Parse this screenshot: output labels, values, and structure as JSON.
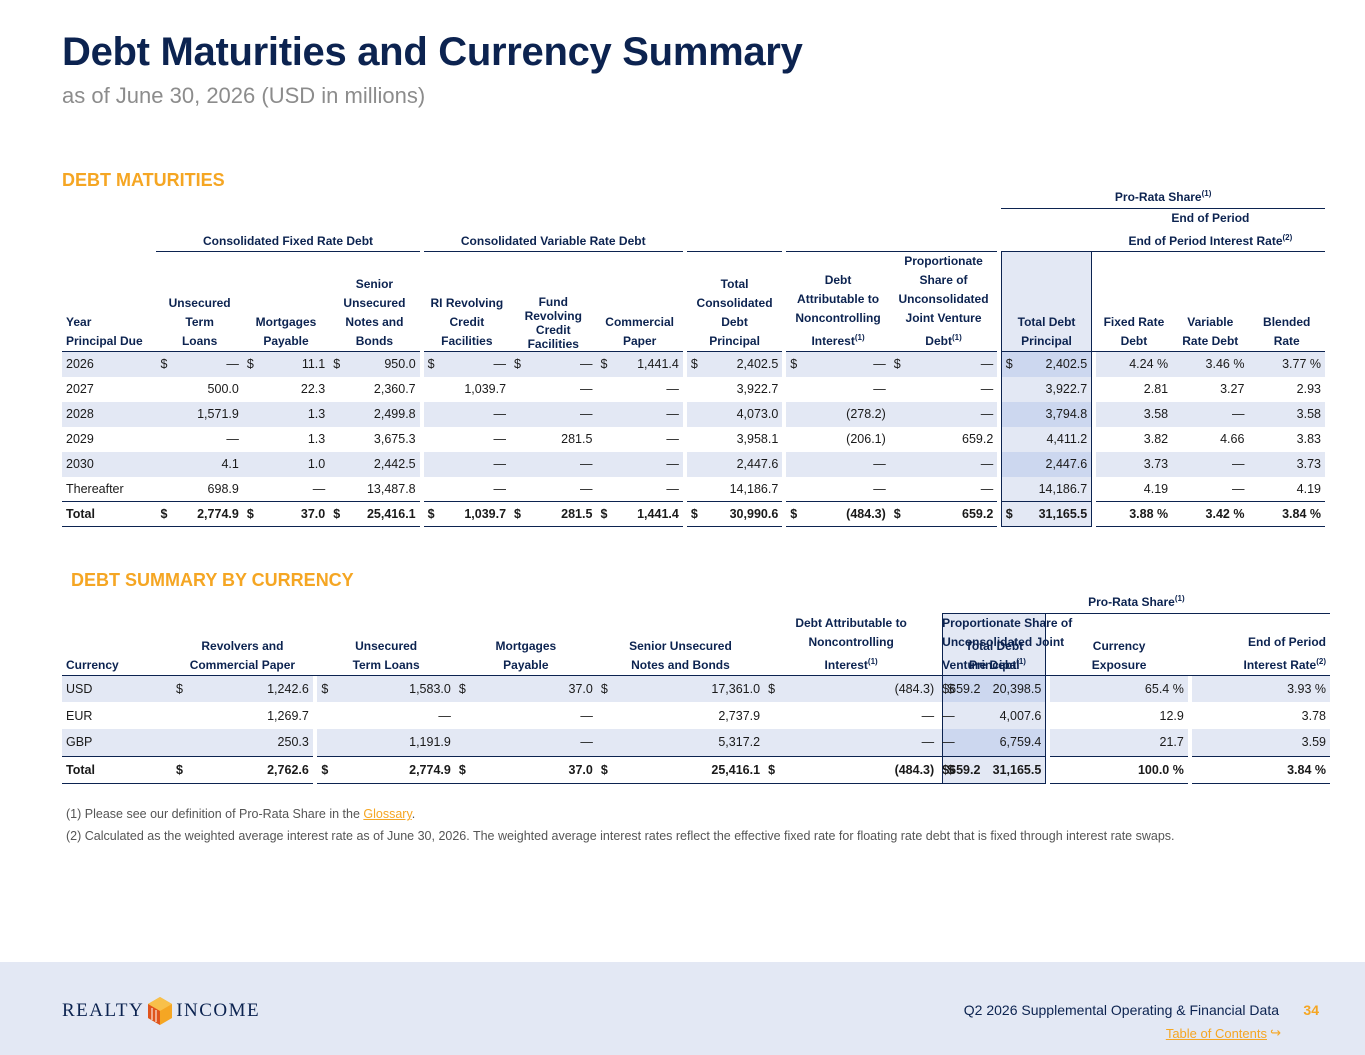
{
  "title": "Debt Maturities and Currency Summary",
  "subtitle": "as of June 30, 2026 (USD in millions)",
  "maturities": {
    "heading": "DEBT MATURITIES",
    "pro_rata_label": "Pro-Rata Share",
    "group_fixed": "Consolidated Fixed Rate Debt",
    "group_variable": "Consolidated Variable Rate Debt",
    "group_rate": "End of Period Interest Rate",
    "columns": {
      "year": [
        "Year",
        "Principal Due"
      ],
      "term_loans": [
        "Unsecured",
        "Term",
        "Loans"
      ],
      "mortgages": [
        "Mortgages",
        "Payable"
      ],
      "notes": [
        "Senior",
        "Unsecured",
        "Notes and",
        "Bonds"
      ],
      "ri_revolver": [
        "RI Revolving",
        "Credit",
        "Facilities"
      ],
      "fund_revolver": [
        "Fund",
        "Revolving",
        "Credit",
        "Facilities"
      ],
      "cp": [
        "Commercial",
        "Paper"
      ],
      "total_cons": [
        "Total",
        "Consolidated",
        "Debt",
        "Principal"
      ],
      "nci": [
        "Debt",
        "Attributable to",
        "Noncontrolling",
        "Interest"
      ],
      "jv": [
        "Proportionate",
        "Share of",
        "Unconsolidated",
        "Joint Venture",
        "Debt"
      ],
      "total": [
        "Total Debt",
        "Principal"
      ],
      "fixed": [
        "Fixed Rate",
        "Debt"
      ],
      "variable": [
        "Variable",
        "Rate Debt"
      ],
      "blended": [
        "Blended",
        "Rate"
      ]
    },
    "rows": [
      {
        "year": "2026",
        "term_loans": "—",
        "mortgages": "11.1",
        "notes": "950.0",
        "ri_revolver": "—",
        "fund_revolver": "—",
        "cp": "1,441.4",
        "total_cons": "2,402.5",
        "nci": "—",
        "jv": "—",
        "total": "2,402.5",
        "fixed": "4.24 %",
        "variable": "3.46 %",
        "blended": "3.77 %"
      },
      {
        "year": "2027",
        "term_loans": "500.0",
        "mortgages": "22.3",
        "notes": "2,360.7",
        "ri_revolver": "1,039.7",
        "fund_revolver": "—",
        "cp": "—",
        "total_cons": "3,922.7",
        "nci": "—",
        "jv": "—",
        "total": "3,922.7",
        "fixed": "2.81",
        "variable": "3.27",
        "blended": "2.93"
      },
      {
        "year": "2028",
        "term_loans": "1,571.9",
        "mortgages": "1.3",
        "notes": "2,499.8",
        "ri_revolver": "—",
        "fund_revolver": "—",
        "cp": "—",
        "total_cons": "4,073.0",
        "nci": "(278.2)",
        "jv": "—",
        "total": "3,794.8",
        "fixed": "3.58",
        "variable": "—",
        "blended": "3.58"
      },
      {
        "year": "2029",
        "term_loans": "—",
        "mortgages": "1.3",
        "notes": "3,675.3",
        "ri_revolver": "—",
        "fund_revolver": "281.5",
        "cp": "—",
        "total_cons": "3,958.1",
        "nci": "(206.1)",
        "jv": "659.2",
        "total": "4,411.2",
        "fixed": "3.82",
        "variable": "4.66",
        "blended": "3.83"
      },
      {
        "year": "2030",
        "term_loans": "4.1",
        "mortgages": "1.0",
        "notes": "2,442.5",
        "ri_revolver": "—",
        "fund_revolver": "—",
        "cp": "—",
        "total_cons": "2,447.6",
        "nci": "—",
        "jv": "—",
        "total": "2,447.6",
        "fixed": "3.73",
        "variable": "—",
        "blended": "3.73"
      },
      {
        "year": "Thereafter",
        "term_loans": "698.9",
        "mortgages": "—",
        "notes": "13,487.8",
        "ri_revolver": "—",
        "fund_revolver": "—",
        "cp": "—",
        "total_cons": "14,186.7",
        "nci": "—",
        "jv": "—",
        "total": "14,186.7",
        "fixed": "4.19",
        "variable": "—",
        "blended": "4.19"
      }
    ],
    "total_row": {
      "year": "Total",
      "term_loans": "2,774.9",
      "mortgages": "37.0",
      "notes": "25,416.1",
      "ri_revolver": "1,039.7",
      "fund_revolver": "281.5",
      "cp": "1,441.4",
      "total_cons": "30,990.6",
      "nci": "(484.3)",
      "jv": "659.2",
      "total": "31,165.5",
      "fixed": "3.88 %",
      "variable": "3.42 %",
      "blended": "3.84 %"
    }
  },
  "currency": {
    "heading": "DEBT SUMMARY BY CURRENCY",
    "pro_rata_label": "Pro-Rata Share",
    "columns": {
      "currency": [
        "Currency"
      ],
      "revolvers": [
        "Revolvers and",
        "Commercial Paper"
      ],
      "term_loans": [
        "Unsecured",
        "Term Loans"
      ],
      "mortgages": [
        "Mortgages",
        "Payable"
      ],
      "notes": [
        "Senior Unsecured",
        "Notes and Bonds"
      ],
      "nci": [
        "Debt Attributable to",
        "Noncontrolling",
        "Interest"
      ],
      "jv": [
        "Proportionate Share of",
        "Unconsolidated Joint",
        "Venture Debt"
      ],
      "total": [
        "Total Debt",
        "Principal"
      ],
      "exposure": [
        "Currency",
        "Exposure"
      ],
      "rate": [
        "End of Period",
        "Interest Rate"
      ]
    },
    "rows": [
      {
        "currency": "USD",
        "revolvers": "1,242.6",
        "term_loans": "1,583.0",
        "mortgages": "37.0",
        "notes": "17,361.0",
        "nci": "(484.3)",
        "jv": "659.2",
        "total": "20,398.5",
        "exposure": "65.4 %",
        "rate": "3.93 %"
      },
      {
        "currency": "EUR",
        "revolvers": "1,269.7",
        "term_loans": "—",
        "mortgages": "—",
        "notes": "2,737.9",
        "nci": "—",
        "jv": "—",
        "total": "4,007.6",
        "exposure": "12.9",
        "rate": "3.78"
      },
      {
        "currency": "GBP",
        "revolvers": "250.3",
        "term_loans": "1,191.9",
        "mortgages": "—",
        "notes": "5,317.2",
        "nci": "—",
        "jv": "—",
        "total": "6,759.4",
        "exposure": "21.7",
        "rate": "3.59"
      }
    ],
    "total_row": {
      "currency": "Total",
      "revolvers": "2,762.6",
      "term_loans": "2,774.9",
      "mortgages": "37.0",
      "notes": "25,416.1",
      "nci": "(484.3)",
      "jv": "659.2",
      "total": "31,165.5",
      "exposure": "100.0 %",
      "rate": "3.84 %"
    }
  },
  "symbols": {
    "dollar": "$",
    "fn1": "(1)",
    "fn2": "(2)"
  },
  "footnotes": {
    "fn1_prefix": "(1)  Please see our definition of Pro-Rata Share in the ",
    "fn1_link": "Glossary",
    "fn1_suffix": ".",
    "fn2": "(2)  Calculated as the weighted average interest rate as of June 30, 2026. The weighted average interest rates reflect the effective fixed rate for floating rate debt that is fixed through interest rate swaps."
  },
  "footer": {
    "logo_left": "REALTY",
    "logo_right": "INCOME",
    "doc_title": "Q2 2026 Supplemental Operating & Financial Data",
    "page_number": "34",
    "toc_link": "Table of Contents",
    "toc_arrow": "↪"
  },
  "colors": {
    "navy": "#0c2350",
    "accent": "#f5a623",
    "band": "#e3e8f4",
    "highlight": "#ccd7ef"
  }
}
